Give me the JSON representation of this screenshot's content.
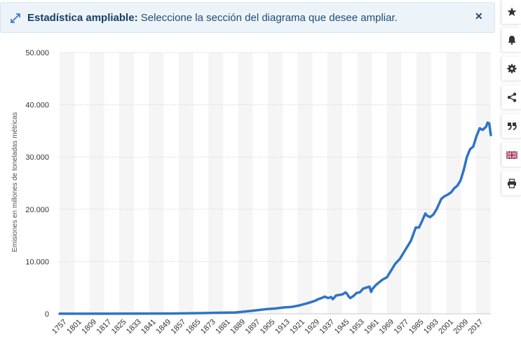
{
  "banner": {
    "title": "Estadística ampliable:",
    "message": "Seleccione la sección del diagrama que desee ampliar."
  },
  "sidebar": [
    "star-icon",
    "bell-icon",
    "gear-icon",
    "share-icon",
    "quote-icon",
    "flag-uk-icon",
    "print-icon"
  ],
  "colors": {
    "line": "#2f73c6",
    "band": "#f5f5f5",
    "grid": "#c8c8c8",
    "banner_bg": "#ecf3f9",
    "banner_text": "#1f4d73"
  },
  "chart_data": {
    "type": "line",
    "ylabel": "Emisiones en millones de toneladas métricas",
    "ylim": [
      0,
      50000
    ],
    "yticks": [
      "0",
      "10.000",
      "20.000",
      "30.000",
      "40.000",
      "50.000"
    ],
    "ytick_values": [
      0,
      10000,
      20000,
      30000,
      40000,
      50000
    ],
    "xlim": [
      1750,
      2020
    ],
    "xticks": [
      "1757",
      "1801",
      "1809",
      "1817",
      "1825",
      "1833",
      "1841",
      "1849",
      "1857",
      "1865",
      "1873",
      "1881",
      "1889",
      "1897",
      "1905",
      "1913",
      "1921",
      "1929",
      "1937",
      "1945",
      "1953",
      "1961",
      "1969",
      "1977",
      "1985",
      "1993",
      "2001",
      "2009",
      "2017"
    ],
    "grid": true,
    "legend": "none",
    "series": [
      {
        "x": [
          1750,
          1800,
          1820,
          1840,
          1850,
          1860,
          1870,
          1880,
          1885,
          1890,
          1895,
          1900,
          1905,
          1910,
          1912,
          1914,
          1916,
          1918,
          1920,
          1921,
          1922,
          1923,
          1925,
          1927,
          1929,
          1930,
          1931,
          1932,
          1934,
          1936,
          1938,
          1940,
          1942,
          1944,
          1945,
          1946,
          1948,
          1950,
          1952,
          1955,
          1958,
          1960,
          1963,
          1966,
          1970,
          1973,
          1975,
          1977,
          1979,
          1980,
          1982,
          1984,
          1986,
          1989,
          1991,
          1993,
          1995,
          1997,
          1999,
          2001,
          2003,
          2005,
          2007,
          2009,
          2011,
          2013,
          2015,
          2017,
          2018,
          2019,
          2020
        ],
        "y": [
          10,
          30,
          60,
          130,
          200,
          260,
          550,
          900,
          1000,
          1200,
          1300,
          1600,
          2000,
          2500,
          2800,
          3000,
          3300,
          3000,
          3200,
          2800,
          3100,
          3500,
          3600,
          3700,
          4100,
          3800,
          3300,
          3000,
          3400,
          4000,
          4100,
          4800,
          5000,
          5200,
          4200,
          4800,
          5500,
          6000,
          6500,
          7000,
          8500,
          9500,
          10500,
          12000,
          14000,
          16500,
          16500,
          17800,
          19200,
          18800,
          18500,
          19000,
          20000,
          22000,
          22500,
          22800,
          23200,
          24000,
          24500,
          25500,
          27500,
          30000,
          31500,
          32000,
          34000,
          35500,
          35200,
          35800,
          36600,
          36400,
          34200
        ]
      }
    ]
  }
}
